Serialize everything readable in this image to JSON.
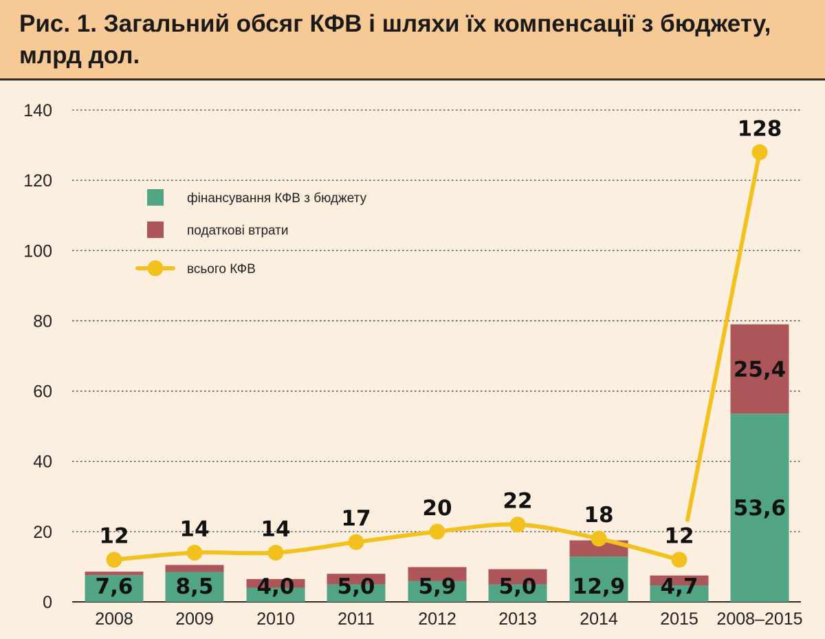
{
  "title": "Рис. 1. Загальний обсяг КФВ і шляхи їх компенсації з бюджету, млрд дол.",
  "chart_data": {
    "type": "bar",
    "title": "Рис. 1. Загальний обсяг КФВ і шляхи їх компенсації з бюджету, млрд дол.",
    "categories": [
      "2008",
      "2009",
      "2010",
      "2011",
      "2012",
      "2013",
      "2014",
      "2015",
      "2008–2015"
    ],
    "ylim": [
      0,
      140
    ],
    "yticks": [
      "0",
      "20",
      "40",
      "60",
      "80",
      "100",
      "120",
      "140"
    ],
    "grid": true,
    "legend_position": "top-left",
    "series": [
      {
        "name": "фінансування КФВ з бюджету",
        "type": "bar",
        "color": "#52a584",
        "values": [
          7.6,
          8.5,
          4.0,
          5.0,
          5.9,
          5.0,
          12.9,
          4.7,
          53.6
        ],
        "labels": [
          "7,6",
          "8,5",
          "4,0",
          "5,0",
          "5,9",
          "5,0",
          "12,9",
          "4,7",
          "53,6"
        ]
      },
      {
        "name": "податкові втрати",
        "type": "bar",
        "color": "#ad5659",
        "values": [
          1.0,
          2.0,
          2.5,
          3.0,
          4.0,
          4.3,
          4.6,
          2.8,
          25.4
        ],
        "labels": [
          "",
          "",
          "",
          "",
          "",
          "",
          "",
          "",
          "25,4"
        ]
      },
      {
        "name": "всього КФВ",
        "type": "line",
        "color": "#f3c11e",
        "values": [
          12,
          14,
          14,
          17,
          20,
          22,
          18,
          12,
          128
        ],
        "labels": [
          "12",
          "14",
          "14",
          "17",
          "20",
          "22",
          "18",
          "12",
          "128"
        ]
      }
    ]
  }
}
